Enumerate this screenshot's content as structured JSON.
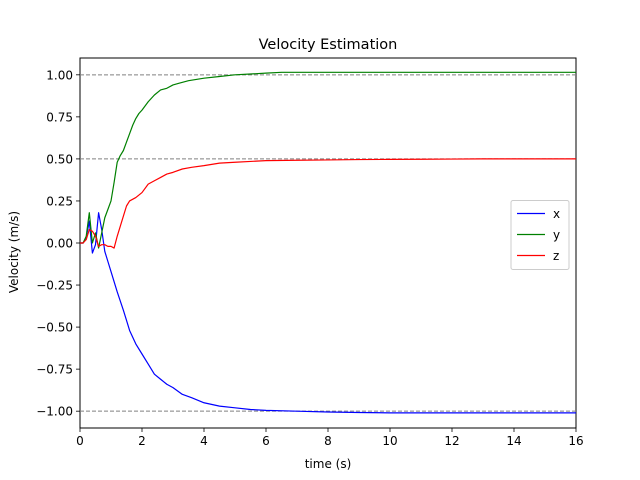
{
  "chart_data": {
    "type": "line",
    "title": "Velocity Estimation",
    "xlabel": "time (s)",
    "ylabel": "Velocity (m/s)",
    "xlim": [
      0,
      16
    ],
    "ylim": [
      -1.1,
      1.1
    ],
    "xticks": [
      0,
      2,
      4,
      6,
      8,
      10,
      12,
      14,
      16
    ],
    "xtick_labels": [
      "0",
      "2",
      "4",
      "6",
      "8",
      "10",
      "12",
      "14",
      "16"
    ],
    "yticks": [
      -1.0,
      -0.75,
      -0.5,
      -0.25,
      0.0,
      0.25,
      0.5,
      0.75,
      1.0
    ],
    "ytick_labels": [
      "−1.00",
      "−0.75",
      "−0.50",
      "−0.25",
      "0.00",
      "0.25",
      "0.50",
      "0.75",
      "1.00"
    ],
    "grid": false,
    "legend_position": "center-right",
    "reference_lines": {
      "values": [
        1.0,
        0.5,
        -1.0
      ],
      "color": "#808080",
      "style": "dashed"
    },
    "series": [
      {
        "name": "x",
        "color": "#0000ff",
        "x": [
          0,
          0.1,
          0.2,
          0.3,
          0.4,
          0.5,
          0.6,
          0.7,
          0.8,
          0.9,
          1.0,
          1.2,
          1.4,
          1.5,
          1.6,
          1.8,
          2.0,
          2.2,
          2.4,
          2.6,
          2.8,
          3.0,
          3.3,
          3.6,
          4.0,
          4.5,
          5.0,
          5.5,
          6.0,
          7.0,
          8.0,
          9.0,
          10.0,
          11.0,
          12.0,
          13.0,
          14.0,
          15.0,
          16.0
        ],
        "y": [
          0.0,
          0.0,
          0.03,
          0.13,
          -0.06,
          -0.01,
          0.18,
          0.08,
          -0.05,
          -0.11,
          -0.17,
          -0.29,
          -0.4,
          -0.46,
          -0.52,
          -0.6,
          -0.66,
          -0.72,
          -0.78,
          -0.81,
          -0.84,
          -0.86,
          -0.9,
          -0.92,
          -0.95,
          -0.97,
          -0.98,
          -0.99,
          -0.995,
          -1.0,
          -1.005,
          -1.008,
          -1.01,
          -1.01,
          -1.01,
          -1.01,
          -1.01,
          -1.01,
          -1.01
        ]
      },
      {
        "name": "y",
        "color": "#008000",
        "x": [
          0,
          0.1,
          0.2,
          0.3,
          0.4,
          0.5,
          0.6,
          0.7,
          0.8,
          0.9,
          1.0,
          1.1,
          1.2,
          1.3,
          1.4,
          1.5,
          1.6,
          1.7,
          1.8,
          1.9,
          2.0,
          2.2,
          2.4,
          2.6,
          2.8,
          3.0,
          3.2,
          3.5,
          4.0,
          4.5,
          5.0,
          5.5,
          6.0,
          6.5,
          7.0,
          8.0,
          9.0,
          10.0,
          11.0,
          12.0,
          13.0,
          14.0,
          15.0,
          16.0
        ],
        "y": [
          0.0,
          0.0,
          0.04,
          0.18,
          0.0,
          0.06,
          -0.03,
          0.06,
          0.15,
          0.2,
          0.25,
          0.36,
          0.48,
          0.52,
          0.55,
          0.6,
          0.65,
          0.7,
          0.74,
          0.77,
          0.79,
          0.84,
          0.88,
          0.91,
          0.92,
          0.94,
          0.95,
          0.965,
          0.98,
          0.99,
          1.0,
          1.005,
          1.01,
          1.015,
          1.015,
          1.015,
          1.015,
          1.015,
          1.015,
          1.015,
          1.015,
          1.015,
          1.015,
          1.015
        ]
      },
      {
        "name": "z",
        "color": "#ff0000",
        "x": [
          0,
          0.1,
          0.2,
          0.3,
          0.4,
          0.5,
          0.6,
          0.7,
          0.8,
          0.9,
          1.0,
          1.1,
          1.2,
          1.3,
          1.4,
          1.5,
          1.6,
          1.8,
          2.0,
          2.2,
          2.4,
          2.6,
          2.8,
          3.0,
          3.3,
          3.6,
          4.0,
          4.5,
          5.0,
          5.5,
          6.0,
          7.0,
          8.0,
          9.0,
          10.0,
          11.0,
          12.0,
          13.0,
          14.0,
          15.0,
          16.0
        ],
        "y": [
          0.0,
          0.0,
          0.02,
          0.08,
          0.07,
          0.04,
          -0.02,
          -0.01,
          -0.01,
          -0.02,
          -0.02,
          -0.03,
          0.04,
          0.1,
          0.16,
          0.22,
          0.25,
          0.27,
          0.3,
          0.35,
          0.37,
          0.39,
          0.41,
          0.42,
          0.44,
          0.45,
          0.46,
          0.475,
          0.48,
          0.485,
          0.49,
          0.492,
          0.494,
          0.496,
          0.497,
          0.498,
          0.499,
          0.5,
          0.5,
          0.5,
          0.5
        ]
      }
    ]
  }
}
